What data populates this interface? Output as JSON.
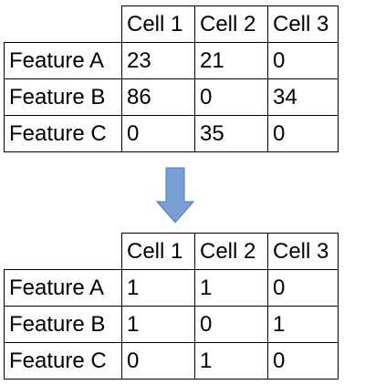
{
  "tables": [
    {
      "columns": [
        "Cell 1",
        "Cell 2",
        "Cell 3"
      ],
      "rows": [
        {
          "label": "Feature A",
          "values": [
            "23",
            "21",
            "0"
          ]
        },
        {
          "label": "Feature B",
          "values": [
            "86",
            "0",
            "34"
          ]
        },
        {
          "label": "Feature C",
          "values": [
            "0",
            "35",
            "0"
          ]
        }
      ]
    },
    {
      "columns": [
        "Cell 1",
        "Cell 2",
        "Cell 3"
      ],
      "rows": [
        {
          "label": "Feature A",
          "values": [
            "1",
            "1",
            "0"
          ]
        },
        {
          "label": "Feature B",
          "values": [
            "1",
            "0",
            "1"
          ]
        },
        {
          "label": "Feature C",
          "values": [
            "0",
            "1",
            "0"
          ]
        }
      ]
    }
  ],
  "arrow": {
    "icon": "down-arrow-icon",
    "fill": "#7a9fd4",
    "stroke": "#4f7ab8"
  },
  "colors": {
    "border": "#000000",
    "text": "#000000",
    "background": "#ffffff"
  }
}
